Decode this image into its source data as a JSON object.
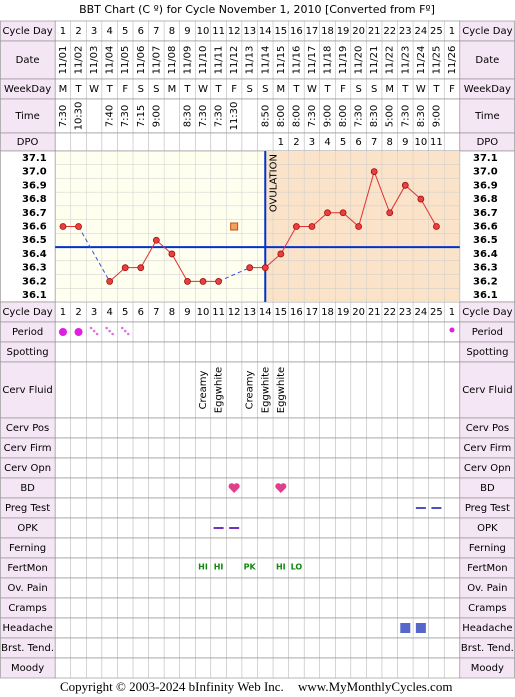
{
  "title": "BBT Chart (C º) for Cycle November 1, 2010  [Converted from Fº]",
  "labels": {
    "cycle_day": "Cycle Day",
    "date": "Date",
    "weekday": "WeekDay",
    "time": "Time",
    "dpo": "DPO",
    "period": "Period",
    "spotting": "Spotting",
    "cerv_fluid": "Cerv Fluid",
    "cerv_pos": "Cerv Pos",
    "cerv_firm": "Cerv Firm",
    "cerv_opn": "Cerv Opn",
    "bd": "BD",
    "preg_test": "Preg Test",
    "opk": "OPK",
    "ferning": "Ferning",
    "fertmon": "FertMon",
    "ov_pain": "Ov. Pain",
    "cramps": "Cramps",
    "headache": "Headache",
    "brst_tend": "Brst. Tend.",
    "moody": "Moody"
  },
  "cycle_days": [
    1,
    2,
    3,
    4,
    5,
    6,
    7,
    8,
    9,
    10,
    11,
    12,
    13,
    14,
    15,
    16,
    17,
    18,
    19,
    20,
    21,
    22,
    23,
    24,
    25,
    1
  ],
  "dates": [
    "11/01",
    "11/02",
    "11/03",
    "11/04",
    "11/05",
    "11/06",
    "11/07",
    "11/08",
    "11/09",
    "11/10",
    "11/11",
    "11/12",
    "11/13",
    "11/14",
    "11/15",
    "11/16",
    "11/17",
    "11/18",
    "11/19",
    "11/20",
    "11/21",
    "11/22",
    "11/23",
    "11/24",
    "11/25",
    "11/26"
  ],
  "weekdays": [
    "M",
    "T",
    "W",
    "T",
    "F",
    "S",
    "S",
    "M",
    "T",
    "W",
    "T",
    "F",
    "S",
    "S",
    "M",
    "T",
    "W",
    "T",
    "F",
    "S",
    "S",
    "M",
    "T",
    "W",
    "T",
    "F"
  ],
  "times": [
    "7:30",
    "10:30",
    null,
    "7:40",
    "7:30",
    "7:15",
    "9:00",
    null,
    "8:30",
    "7:30",
    "7:30",
    "11:30",
    null,
    "8:50",
    "8:00",
    "8:00",
    "7:30",
    "9:00",
    "8:00",
    "7:30",
    "8:30",
    "5:00",
    "7:30",
    "8:30",
    "9:00",
    null
  ],
  "dpo": [
    null,
    null,
    null,
    null,
    null,
    null,
    null,
    null,
    null,
    null,
    null,
    null,
    null,
    null,
    1,
    2,
    3,
    4,
    5,
    6,
    7,
    8,
    9,
    10,
    11,
    null
  ],
  "chart_data": {
    "type": "line",
    "ylim": [
      36.05,
      37.15
    ],
    "yticks": [
      36.1,
      36.2,
      36.3,
      36.4,
      36.5,
      36.6,
      36.7,
      36.8,
      36.9,
      {
        "value": 37,
        "label": "37.0"
      },
      37.1
    ],
    "values": [
      36.6,
      36.6,
      null,
      36.2,
      36.3,
      36.3,
      36.5,
      36.4,
      36.2,
      36.2,
      36.2,
      null,
      36.3,
      36.3,
      36.4,
      36.6,
      36.6,
      36.7,
      36.7,
      36.6,
      37.0,
      36.7,
      36.9,
      36.8,
      36.6,
      null
    ],
    "discarded": [
      null,
      null,
      null,
      null,
      null,
      null,
      null,
      null,
      null,
      null,
      null,
      36.6,
      null,
      null,
      null,
      null,
      null,
      null,
      null,
      null,
      null,
      null,
      null,
      null,
      null,
      null
    ],
    "color": "#e03030",
    "coverline": 36.45,
    "ovulation_day": 14,
    "ovulation_label": "OVULATION"
  },
  "cerv_fluid": [
    null,
    null,
    null,
    null,
    null,
    null,
    null,
    null,
    null,
    "Creamy",
    "Eggwhite",
    null,
    "Creamy",
    "Eggwhite",
    "Eggwhite",
    null,
    null,
    null,
    null,
    null,
    null,
    null,
    null,
    null,
    null,
    null
  ],
  "fertmon": [
    null,
    null,
    null,
    null,
    null,
    null,
    null,
    null,
    null,
    "HI",
    "HI",
    null,
    "PK",
    null,
    "HI",
    "LO",
    null,
    null,
    null,
    null,
    null,
    null,
    null,
    null,
    null,
    null
  ],
  "footer": {
    "copyright": "Copyright © 2003-2024 bInfinity Web Inc.",
    "site": "www.MyMonthlyCycles.com"
  }
}
